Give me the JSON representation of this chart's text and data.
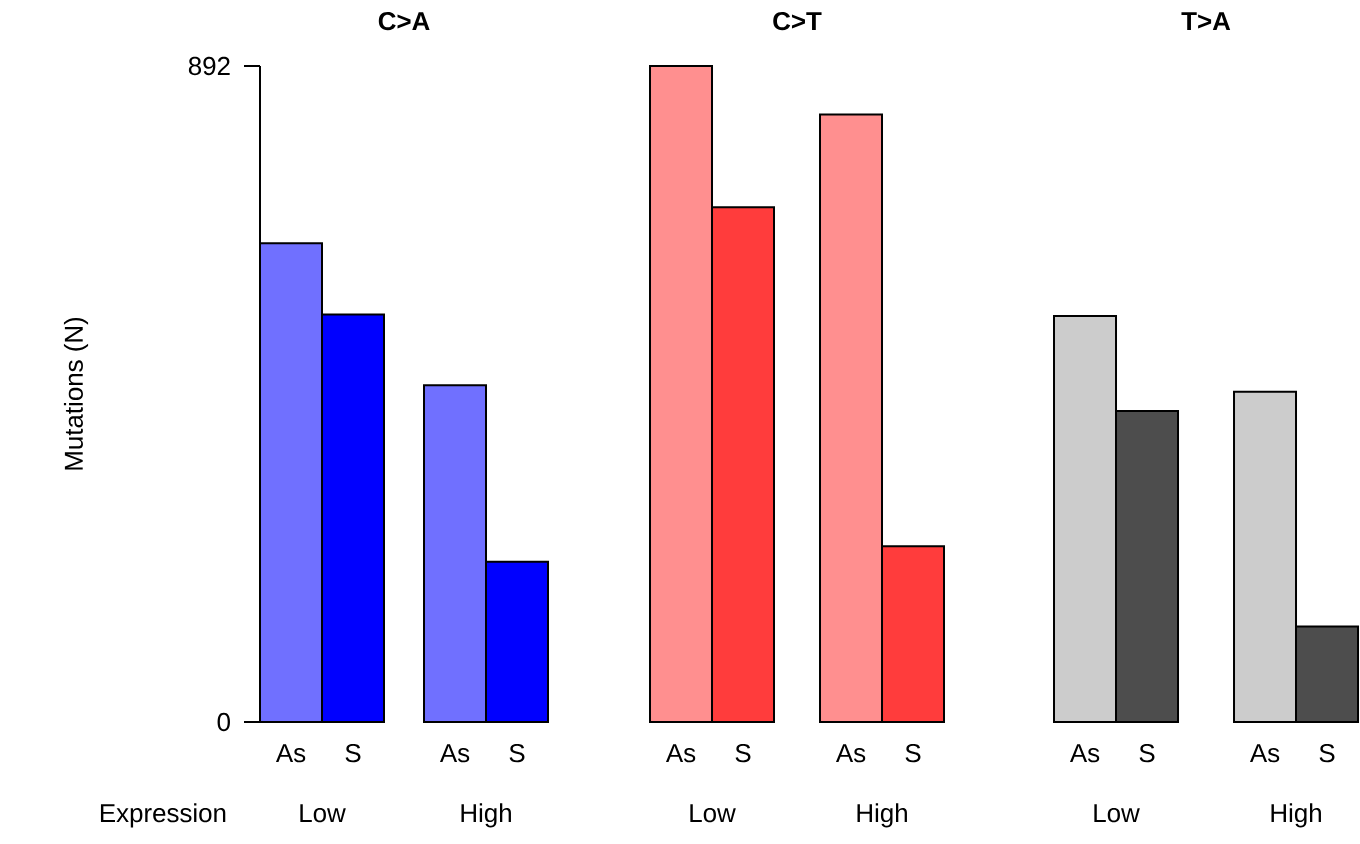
{
  "chart_data": [
    {
      "type": "bar",
      "title": "C>A",
      "xlabel": "Expression",
      "ylabel": "Mutations (N)",
      "categories": [
        "Low",
        "High"
      ],
      "ylim": [
        0,
        892
      ],
      "yticks": [
        0,
        892
      ],
      "series": [
        {
          "name": "As",
          "color": "#7070ff",
          "values": [
            651,
            458
          ]
        },
        {
          "name": "S",
          "color": "#0000ff",
          "values": [
            554,
            218
          ]
        }
      ]
    },
    {
      "type": "bar",
      "title": "C>T",
      "categories": [
        "Low",
        "High"
      ],
      "ylim": [
        0,
        892
      ],
      "yticks": [
        0,
        892
      ],
      "tick_labels": "x",
      "series": [
        {
          "name": "As",
          "color": "#ff8f8f",
          "values": [
            892,
            826
          ]
        },
        {
          "name": "S",
          "color": "#ff3c3c",
          "values": [
            700,
            239
          ]
        }
      ]
    },
    {
      "type": "bar",
      "title": "T>A",
      "categories": [
        "Low",
        "High"
      ],
      "ylim": [
        0,
        892
      ],
      "yticks": [
        0,
        892
      ],
      "tick_labels": "x",
      "series": [
        {
          "name": "As",
          "color": "#cccccc",
          "values": [
            552,
            449
          ]
        },
        {
          "name": "S",
          "color": "#4d4d4d",
          "values": [
            423,
            130
          ]
        }
      ]
    }
  ]
}
